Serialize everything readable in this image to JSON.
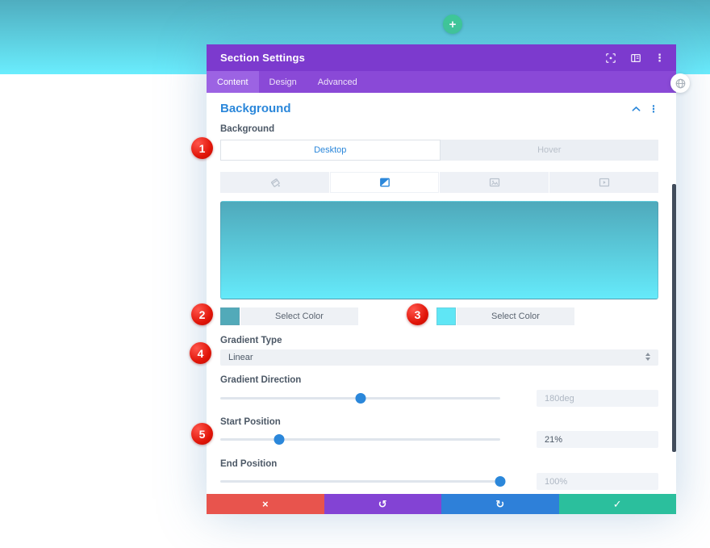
{
  "page": {
    "top_band": {
      "from": "#4fadbf",
      "to": "#6aedfd"
    },
    "add_section_button": {
      "label": "+",
      "color": "#3ec997"
    },
    "floating_button": {
      "icon": "globe-icon"
    }
  },
  "modal": {
    "title": "Section Settings",
    "colors": {
      "header": "#7c3ace",
      "tab_bar": "#8a49d7",
      "active_tab": "#9c63e3",
      "accent": "#2b87da"
    },
    "header_icons": [
      {
        "name": "focus-icon"
      },
      {
        "name": "panel-toggle-icon"
      },
      {
        "name": "kebab-menu-icon",
        "glyph": "⋮"
      }
    ],
    "tabs": [
      {
        "label": "Content",
        "active": true
      },
      {
        "label": "Design",
        "active": false
      },
      {
        "label": "Advanced",
        "active": false
      }
    ],
    "section": {
      "heading": "Background",
      "heading_icons": {
        "collapse": "chevron-up-icon",
        "menu_glyph": "⋮"
      },
      "field_label": "Background",
      "device_tabs": [
        {
          "label": "Desktop",
          "active": true
        },
        {
          "label": "Hover",
          "active": false
        }
      ],
      "type_tabs": [
        {
          "name": "color-tab",
          "icon": "paint-bucket-icon",
          "active": false
        },
        {
          "name": "gradient-tab",
          "icon": "gradient-icon",
          "active": true
        },
        {
          "name": "image-tab",
          "icon": "image-icon",
          "active": false
        },
        {
          "name": "video-tab",
          "icon": "video-icon",
          "active": false
        }
      ],
      "preview": {
        "from": "#4fa9bb",
        "to": "#65eafa",
        "direction": "180deg"
      },
      "color_stops": [
        {
          "swatch": "#52aab9",
          "button_label": "Select Color"
        },
        {
          "swatch": "#5fe6f5",
          "button_label": "Select Color"
        }
      ],
      "gradient_type": {
        "label": "Gradient Type",
        "value": "Linear"
      },
      "sliders": [
        {
          "label": "Gradient Direction",
          "value": "180deg",
          "percent": 50
        },
        {
          "label": "Start Position",
          "value": "21%",
          "percent": 21
        },
        {
          "label": "End Position",
          "value": "100%",
          "percent": 100
        }
      ],
      "slider_handle_color": "#2b87da"
    },
    "footer": [
      {
        "name": "discard",
        "glyph": "×",
        "color": "#e8544d"
      },
      {
        "name": "undo",
        "glyph": "↺",
        "color": "#8343d4"
      },
      {
        "name": "redo",
        "glyph": "↻",
        "color": "#2e80d9"
      },
      {
        "name": "save",
        "glyph": "✓",
        "color": "#2bbf9d"
      }
    ]
  },
  "annotations": {
    "badges": [
      {
        "label": "1"
      },
      {
        "label": "2"
      },
      {
        "label": "3"
      },
      {
        "label": "4"
      },
      {
        "label": "5"
      }
    ],
    "badge_color": "#e01408"
  }
}
